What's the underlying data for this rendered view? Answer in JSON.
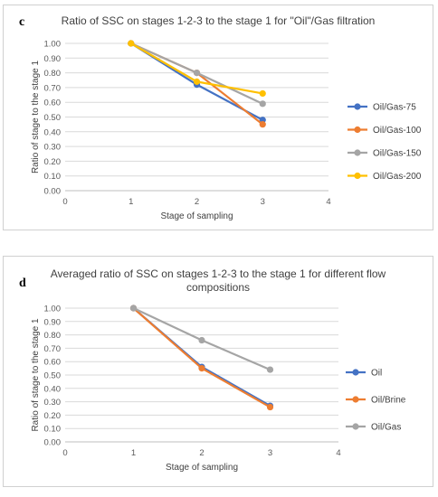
{
  "chart_data": [
    {
      "panel_letter": "c",
      "type": "line",
      "title": "Ratio of SSC on stages 1-2-3 to the stage 1 for \"Oil\"/Gas filtration",
      "xlabel": "Stage of sampling",
      "ylabel": "Ratio of stage to the stage 1",
      "xlim": [
        0,
        4
      ],
      "ylim": [
        0,
        1
      ],
      "x_ticks": [
        "0",
        "1",
        "2",
        "3",
        "4"
      ],
      "y_ticks": [
        "0.00",
        "0.10",
        "0.20",
        "0.30",
        "0.40",
        "0.50",
        "0.60",
        "0.70",
        "0.80",
        "0.90",
        "1.00"
      ],
      "grid": "horizontal",
      "legend_position": "right",
      "x": [
        1,
        2,
        3
      ],
      "series": [
        {
          "name": "Oil/Gas-75",
          "color": "#4472C4",
          "values": [
            1.0,
            0.72,
            0.48
          ]
        },
        {
          "name": "Oil/Gas-100",
          "color": "#ED7D31",
          "values": [
            1.0,
            0.8,
            0.45
          ]
        },
        {
          "name": "Oil/Gas-150",
          "color": "#A5A5A5",
          "values": [
            1.0,
            0.8,
            0.59
          ]
        },
        {
          "name": "Oil/Gas-200",
          "color": "#FFC000",
          "values": [
            1.0,
            0.74,
            0.66
          ]
        }
      ]
    },
    {
      "panel_letter": "d",
      "type": "line",
      "title": "Averaged ratio of SSC on stages 1-2-3 to the stage 1 for different flow compositions",
      "title_lines": [
        "Averaged ratio of SSC on stages 1-2-3 to the stage 1 for different flow",
        "compositions"
      ],
      "xlabel": "Stage of sampling",
      "ylabel": "Ratio of stage to the stage 1",
      "xlim": [
        0,
        4
      ],
      "ylim": [
        0,
        1
      ],
      "x_ticks": [
        "0",
        "1",
        "2",
        "3",
        "4"
      ],
      "y_ticks": [
        "0.00",
        "0.10",
        "0.20",
        "0.30",
        "0.40",
        "0.50",
        "0.60",
        "0.70",
        "0.80",
        "0.90",
        "1.00"
      ],
      "grid": "horizontal",
      "legend_position": "right",
      "x": [
        1,
        2,
        3
      ],
      "series": [
        {
          "name": "Oil",
          "color": "#4472C4",
          "values": [
            1.0,
            0.56,
            0.27
          ]
        },
        {
          "name": "Oil/Brine",
          "color": "#ED7D31",
          "values": [
            1.0,
            0.55,
            0.26
          ]
        },
        {
          "name": "Oil/Gas",
          "color": "#A5A5A5",
          "values": [
            1.0,
            0.76,
            0.54
          ]
        }
      ]
    }
  ]
}
